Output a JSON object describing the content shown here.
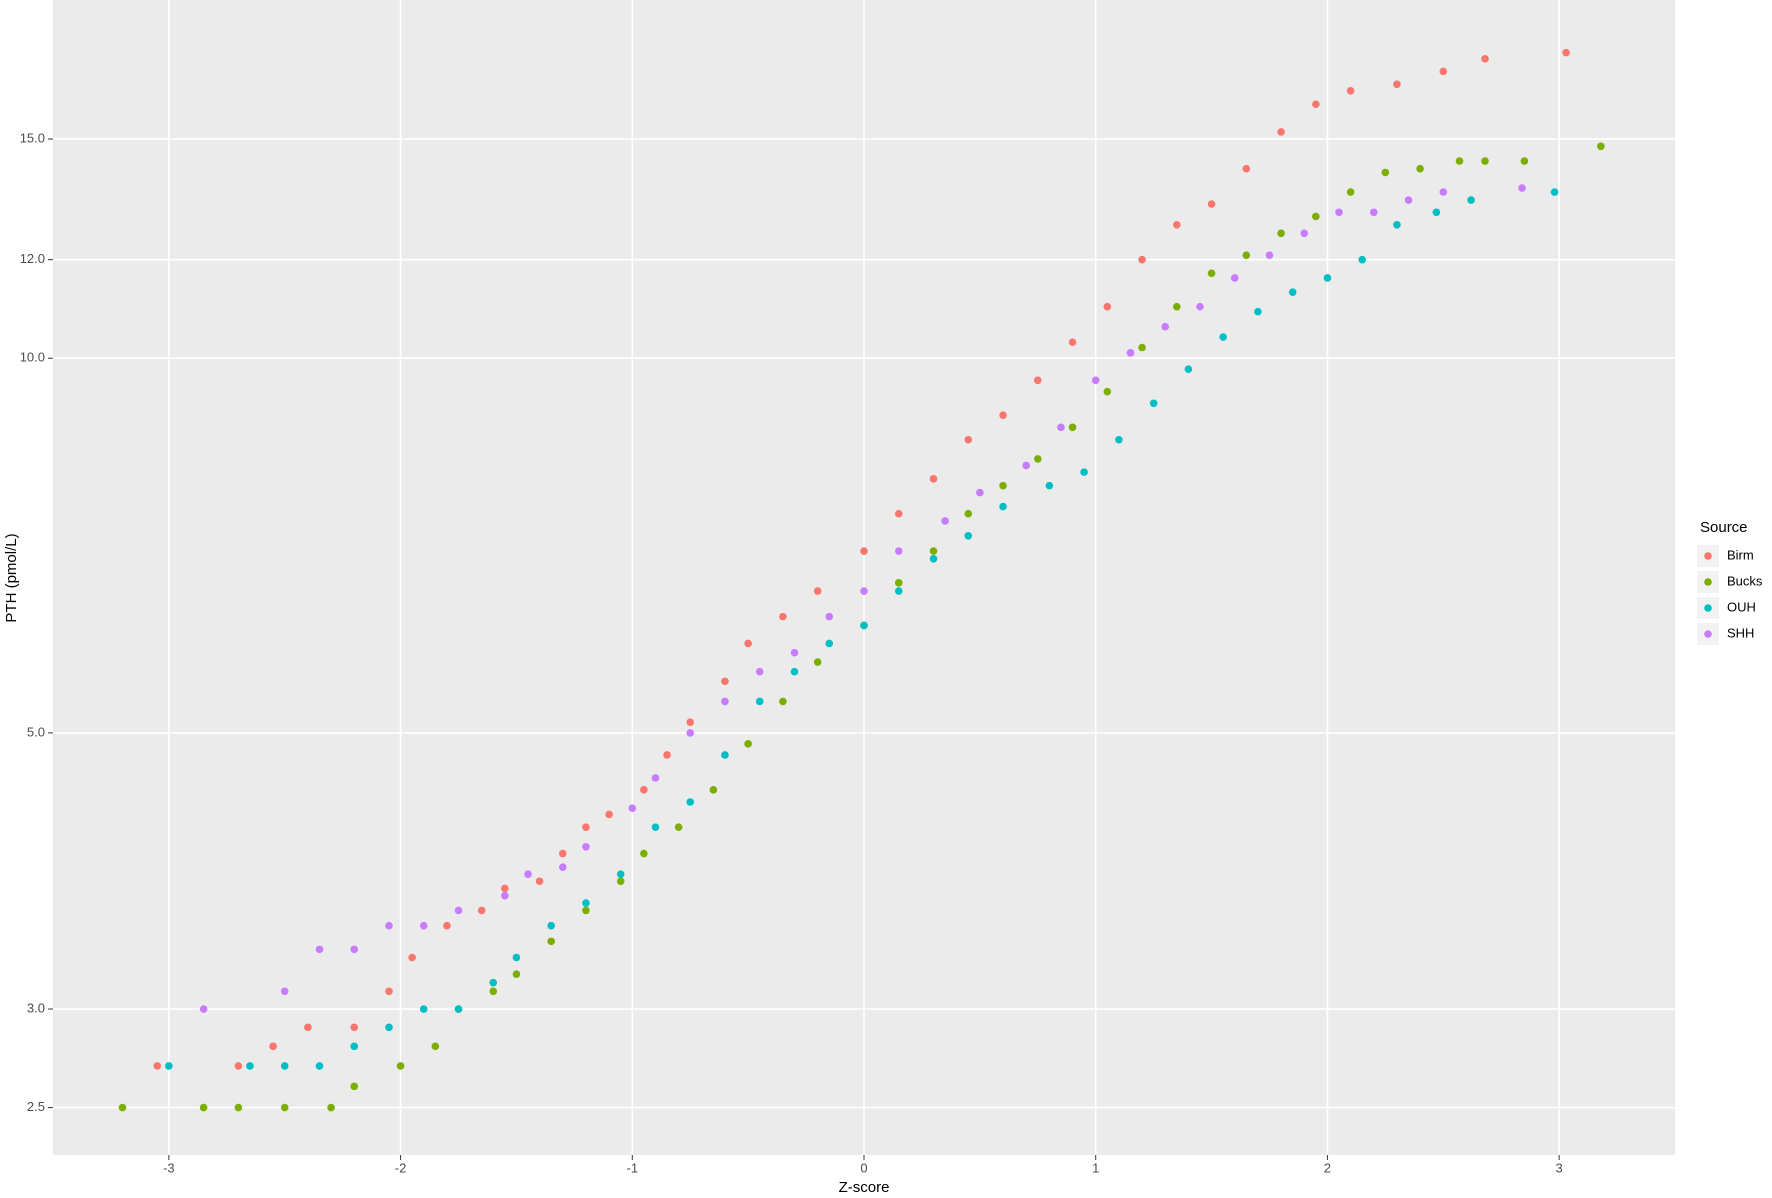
{
  "chart_data": {
    "type": "scatter",
    "x_label": "Z-score",
    "y_label": "PTH (pmol/L)",
    "legend_title": "Source",
    "log_y": true,
    "grid": true,
    "legend_position": "right",
    "xlim": [
      -3.5,
      3.5
    ],
    "xticks": [
      -3,
      -2,
      -1,
      0,
      1,
      2,
      3
    ],
    "ylim": [
      2.29,
      19.4
    ],
    "yticks": [
      {
        "value": 2.5,
        "label": "2.5"
      },
      {
        "value": 3,
        "label": "3.0"
      },
      {
        "value": 5,
        "label": "5.0"
      },
      {
        "value": 10,
        "label": "10.0"
      },
      {
        "value": 12,
        "label": "12.0"
      },
      {
        "value": 15,
        "label": "15.0"
      }
    ],
    "series": [
      {
        "name": "Birm",
        "color": "#F8766D",
        "x": [
          -3.05,
          -2.7,
          -2.55,
          -2.4,
          -2.2,
          -2.05,
          -1.95,
          -1.8,
          -1.65,
          -1.55,
          -1.4,
          -1.3,
          -1.2,
          -1.1,
          -0.95,
          -0.85,
          -0.75,
          -0.6,
          -0.5,
          -0.35,
          -0.2,
          0,
          0.15,
          0.3,
          0.45,
          0.6,
          0.75,
          0.9,
          1.05,
          1.2,
          1.35,
          1.5,
          1.65,
          1.8,
          1.95,
          2.1,
          2.3,
          2.5,
          2.68,
          3.03
        ],
        "values": [
          2.7,
          2.7,
          2.8,
          2.9,
          2.9,
          3.1,
          3.3,
          3.5,
          3.6,
          3.75,
          3.8,
          4.0,
          4.2,
          4.3,
          4.5,
          4.8,
          5.1,
          5.5,
          5.9,
          6.2,
          6.5,
          7.0,
          7.5,
          8.0,
          8.6,
          9.0,
          9.6,
          10.3,
          11.0,
          12.0,
          12.8,
          13.3,
          14.2,
          15.2,
          16.0,
          16.4,
          16.6,
          17.0,
          17.4,
          17.6
        ]
      },
      {
        "name": "Bucks",
        "color": "#7CAE00",
        "x": [
          -3.2,
          -2.85,
          -2.7,
          -2.5,
          -2.3,
          -2.2,
          -2.0,
          -1.85,
          -1.75,
          -1.6,
          -1.5,
          -1.35,
          -1.2,
          -1.05,
          -0.95,
          -0.8,
          -0.65,
          -0.5,
          -0.35,
          -0.2,
          0,
          0.15,
          0.3,
          0.45,
          0.6,
          0.75,
          0.9,
          1.05,
          1.2,
          1.35,
          1.5,
          1.65,
          1.8,
          1.95,
          2.1,
          2.25,
          2.4,
          2.57,
          2.68,
          2.85,
          3.18
        ],
        "values": [
          2.5,
          2.5,
          2.5,
          2.5,
          2.5,
          2.6,
          2.7,
          2.8,
          3.0,
          3.1,
          3.2,
          3.4,
          3.6,
          3.8,
          4.0,
          4.2,
          4.5,
          4.9,
          5.3,
          5.7,
          6.1,
          6.6,
          7.0,
          7.5,
          7.9,
          8.3,
          8.8,
          9.4,
          10.2,
          11.0,
          11.7,
          12.1,
          12.6,
          13.0,
          13.6,
          14.1,
          14.2,
          14.4,
          14.4,
          14.4,
          14.8
        ]
      },
      {
        "name": "OUH",
        "color": "#00BFC4",
        "x": [
          -3.0,
          -2.65,
          -2.5,
          -2.35,
          -2.2,
          -2.05,
          -1.9,
          -1.75,
          -1.6,
          -1.5,
          -1.35,
          -1.2,
          -1.05,
          -0.9,
          -0.75,
          -0.6,
          -0.45,
          -0.3,
          -0.15,
          0,
          0.15,
          0.3,
          0.45,
          0.6,
          0.8,
          0.95,
          1.1,
          1.25,
          1.4,
          1.55,
          1.7,
          1.85,
          2.0,
          2.15,
          2.3,
          2.47,
          2.62,
          2.98
        ],
        "values": [
          2.7,
          2.7,
          2.7,
          2.7,
          2.8,
          2.9,
          3.0,
          3.0,
          3.15,
          3.3,
          3.5,
          3.65,
          3.85,
          4.2,
          4.4,
          4.8,
          5.3,
          5.6,
          5.9,
          6.1,
          6.5,
          6.9,
          7.2,
          7.6,
          7.9,
          8.1,
          8.6,
          9.2,
          9.8,
          10.4,
          10.9,
          11.3,
          11.6,
          12.0,
          12.8,
          13.1,
          13.4,
          13.6
        ]
      },
      {
        "name": "SHH",
        "color": "#C77CFF",
        "x": [
          -2.85,
          -2.5,
          -2.35,
          -2.2,
          -2.05,
          -1.9,
          -1.75,
          -1.55,
          -1.45,
          -1.3,
          -1.2,
          -1.0,
          -0.9,
          -0.75,
          -0.6,
          -0.45,
          -0.3,
          -0.15,
          0,
          0.15,
          0.35,
          0.5,
          0.7,
          0.85,
          1.0,
          1.15,
          1.3,
          1.45,
          1.6,
          1.75,
          1.9,
          2.05,
          2.2,
          2.35,
          2.5,
          2.84
        ],
        "values": [
          3.0,
          3.1,
          3.35,
          3.35,
          3.5,
          3.5,
          3.6,
          3.7,
          3.85,
          3.9,
          4.05,
          4.35,
          4.6,
          5.0,
          5.3,
          5.6,
          5.8,
          6.2,
          6.5,
          7.0,
          7.4,
          7.8,
          8.2,
          8.8,
          9.6,
          10.1,
          10.6,
          11.0,
          11.6,
          12.1,
          12.6,
          13.1,
          13.1,
          13.4,
          13.6,
          13.7
        ]
      }
    ]
  }
}
